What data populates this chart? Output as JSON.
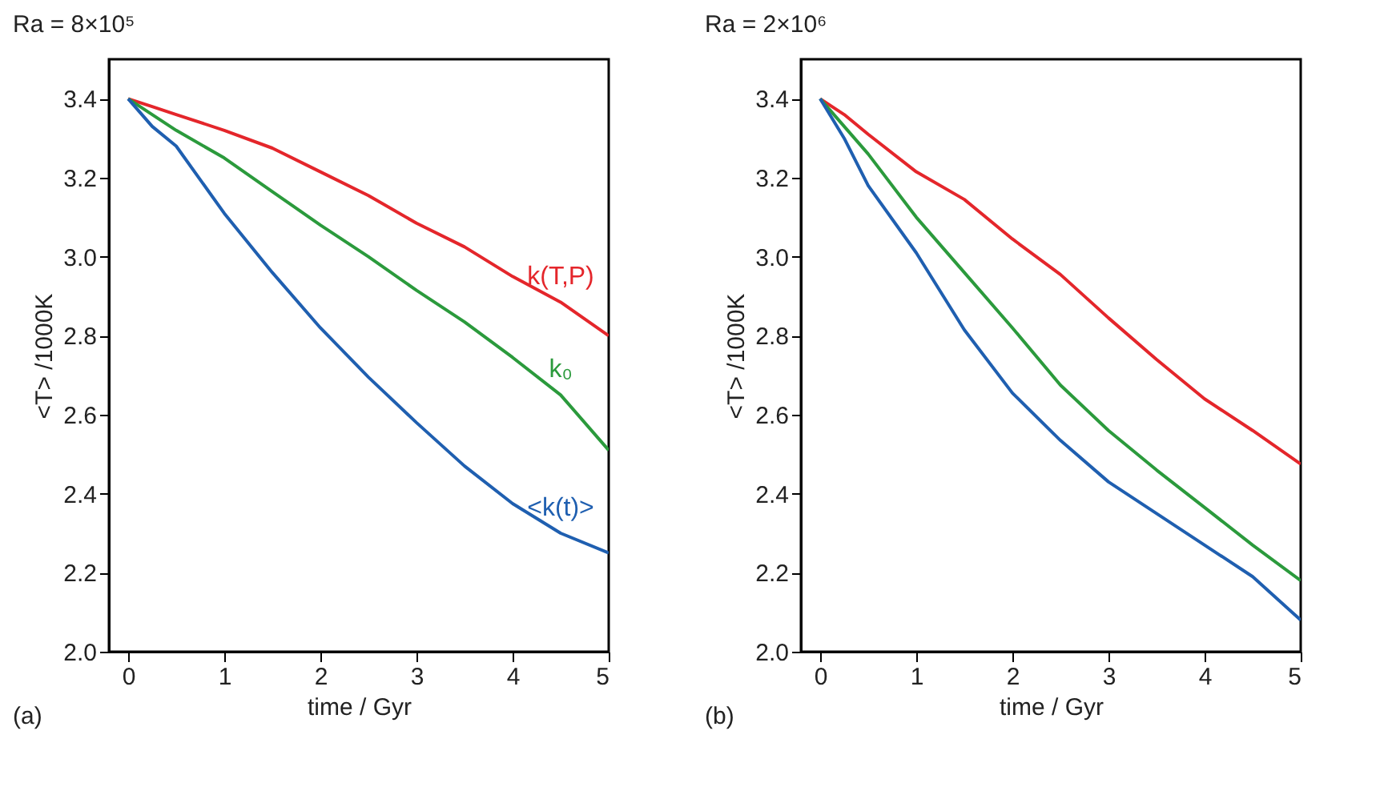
{
  "chart_data": [
    {
      "type": "line",
      "title": "Ra = 8×10⁵",
      "xlabel": "time / Gyr",
      "ylabel": "<T> /1000K",
      "annotations": [
        "(a)"
      ],
      "xlim": [
        -0.2,
        5
      ],
      "ylim": [
        2.0,
        3.5
      ],
      "xticks": [
        0,
        1,
        2,
        3,
        4,
        5
      ],
      "yticks": [
        {
          "value": 2,
          "label": "2.0"
        },
        {
          "value": 2.2,
          "label": "2.2"
        },
        {
          "value": 2.4,
          "label": "2.4"
        },
        {
          "value": 2.6,
          "label": "2.6"
        },
        {
          "value": 2.8,
          "label": "2.8"
        },
        {
          "value": 3,
          "label": "3.0"
        },
        {
          "value": 3.2,
          "label": "3.2"
        },
        {
          "value": 3.4,
          "label": "3.4"
        }
      ],
      "grid": false,
      "legend": false,
      "x": [
        0,
        0.25,
        0.5,
        1,
        1.5,
        2,
        2.5,
        3,
        3.5,
        4,
        4.5,
        5
      ],
      "series": [
        {
          "name": "k(T,P)",
          "color": "#e4262b",
          "values": [
            3.4,
            3.38,
            3.36,
            3.32,
            3.275,
            3.215,
            3.155,
            3.085,
            3.025,
            2.95,
            2.885,
            2.8
          ]
        },
        {
          "name": "k₀",
          "color": "#2b9a3c",
          "values": [
            3.4,
            3.36,
            3.32,
            3.25,
            3.165,
            3.08,
            3.0,
            2.915,
            2.835,
            2.745,
            2.65,
            2.51
          ]
        },
        {
          "name": "<k(t)>",
          "color": "#1f5fb0",
          "values": [
            3.4,
            3.33,
            3.28,
            3.11,
            2.96,
            2.82,
            2.695,
            2.58,
            2.47,
            2.375,
            2.3,
            2.25
          ]
        }
      ]
    },
    {
      "type": "line",
      "title": "Ra = 2×10⁶",
      "xlabel": "time / Gyr",
      "ylabel": "<T> /1000K",
      "annotations": [
        "(b)"
      ],
      "xlim": [
        -0.2,
        5
      ],
      "ylim": [
        2.0,
        3.5
      ],
      "xticks": [
        0,
        1,
        2,
        3,
        4,
        5
      ],
      "yticks": [
        {
          "value": 2,
          "label": "2.0"
        },
        {
          "value": 2.2,
          "label": "2.2"
        },
        {
          "value": 2.4,
          "label": "2.4"
        },
        {
          "value": 2.6,
          "label": "2.6"
        },
        {
          "value": 2.8,
          "label": "2.8"
        },
        {
          "value": 3,
          "label": "3.0"
        },
        {
          "value": 3.2,
          "label": "3.2"
        },
        {
          "value": 3.4,
          "label": "3.4"
        }
      ],
      "grid": false,
      "legend": false,
      "x": [
        0,
        0.25,
        0.5,
        1,
        1.5,
        2,
        2.5,
        3,
        3.5,
        4,
        4.5,
        5
      ],
      "series": [
        {
          "color": "#e4262b",
          "values": [
            3.4,
            3.36,
            3.31,
            3.215,
            3.145,
            3.045,
            2.955,
            2.845,
            2.74,
            2.64,
            2.56,
            2.475
          ]
        },
        {
          "color": "#2b9a3c",
          "values": [
            3.4,
            3.33,
            3.26,
            3.1,
            2.96,
            2.82,
            2.675,
            2.56,
            2.46,
            2.365,
            2.27,
            2.18
          ]
        },
        {
          "color": "#1f5fb0",
          "values": [
            3.4,
            3.3,
            3.18,
            3.01,
            2.815,
            2.655,
            2.535,
            2.43,
            2.35,
            2.27,
            2.19,
            2.08
          ]
        }
      ]
    }
  ]
}
